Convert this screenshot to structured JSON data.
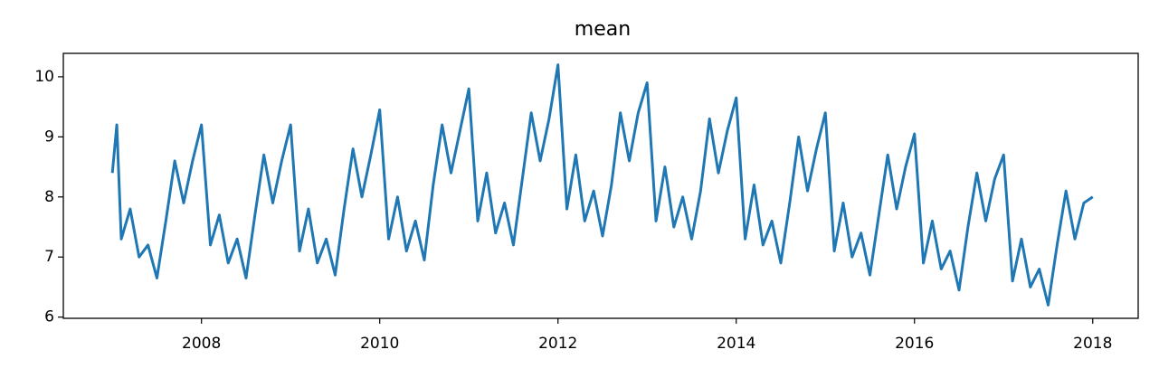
{
  "chart_data": {
    "type": "line",
    "title": "mean",
    "x": [
      2007,
      2007.05,
      2007.1,
      2007.2,
      2007.3,
      2007.4,
      2007.5,
      2007.6,
      2007.7,
      2007.8,
      2007.9,
      2008,
      2008.1,
      2008.2,
      2008.3,
      2008.4,
      2008.5,
      2008.6,
      2008.7,
      2008.8,
      2008.9,
      2009,
      2009.1,
      2009.2,
      2009.3,
      2009.4,
      2009.5,
      2009.6,
      2009.7,
      2009.8,
      2009.9,
      2010,
      2010.1,
      2010.2,
      2010.3,
      2010.4,
      2010.5,
      2010.6,
      2010.7,
      2010.8,
      2010.9,
      2011,
      2011.1,
      2011.2,
      2011.3,
      2011.4,
      2011.5,
      2011.6,
      2011.7,
      2011.8,
      2011.9,
      2012,
      2012.1,
      2012.2,
      2012.3,
      2012.4,
      2012.5,
      2012.6,
      2012.7,
      2012.8,
      2012.9,
      2013,
      2013.1,
      2013.2,
      2013.3,
      2013.4,
      2013.5,
      2013.6,
      2013.7,
      2013.8,
      2013.9,
      2014,
      2014.1,
      2014.2,
      2014.3,
      2014.4,
      2014.5,
      2014.6,
      2014.7,
      2014.8,
      2014.9,
      2015,
      2015.1,
      2015.2,
      2015.3,
      2015.4,
      2015.5,
      2015.6,
      2015.7,
      2015.8,
      2015.9,
      2016,
      2016.1,
      2016.2,
      2016.3,
      2016.4,
      2016.5,
      2016.6,
      2016.7,
      2016.8,
      2016.9,
      2017,
      2017.1,
      2017.2,
      2017.3,
      2017.4,
      2017.5,
      2017.6,
      2017.7,
      2017.8,
      2017.9,
      2018
    ],
    "series": [
      {
        "color": "#1f77b4",
        "values": [
          8.4,
          9.2,
          7.3,
          7.8,
          7.0,
          7.2,
          6.65,
          7.6,
          8.6,
          7.9,
          8.6,
          9.2,
          7.2,
          7.7,
          6.9,
          7.3,
          6.65,
          7.7,
          8.7,
          7.9,
          8.6,
          9.2,
          7.1,
          7.8,
          6.9,
          7.3,
          6.7,
          7.8,
          8.8,
          8.0,
          8.7,
          9.45,
          7.3,
          8.0,
          7.1,
          7.6,
          6.95,
          8.2,
          9.2,
          8.4,
          9.1,
          9.8,
          7.6,
          8.4,
          7.4,
          7.9,
          7.2,
          8.3,
          9.4,
          8.6,
          9.3,
          10.2,
          7.8,
          8.7,
          7.6,
          8.1,
          7.35,
          8.2,
          9.4,
          8.6,
          9.4,
          9.9,
          7.6,
          8.5,
          7.5,
          8.0,
          7.3,
          8.1,
          9.3,
          8.4,
          9.1,
          9.65,
          7.3,
          8.2,
          7.2,
          7.6,
          6.9,
          7.9,
          9.0,
          8.1,
          8.8,
          9.4,
          7.1,
          7.9,
          7.0,
          7.4,
          6.7,
          7.7,
          8.7,
          7.8,
          8.5,
          9.05,
          6.9,
          7.6,
          6.8,
          7.1,
          6.45,
          7.5,
          8.4,
          7.6,
          8.3,
          8.7,
          6.6,
          7.3,
          6.5,
          6.8,
          6.2,
          7.2,
          8.1,
          7.3,
          7.9,
          8.0
        ]
      }
    ],
    "xlim": [
      2006.45,
      2018.51
    ],
    "xticks": [
      2008,
      2010,
      2012,
      2014,
      2016,
      2018
    ],
    "ylim": [
      5.98,
      10.39
    ],
    "yticks": [
      6,
      7,
      8,
      9,
      10
    ]
  }
}
